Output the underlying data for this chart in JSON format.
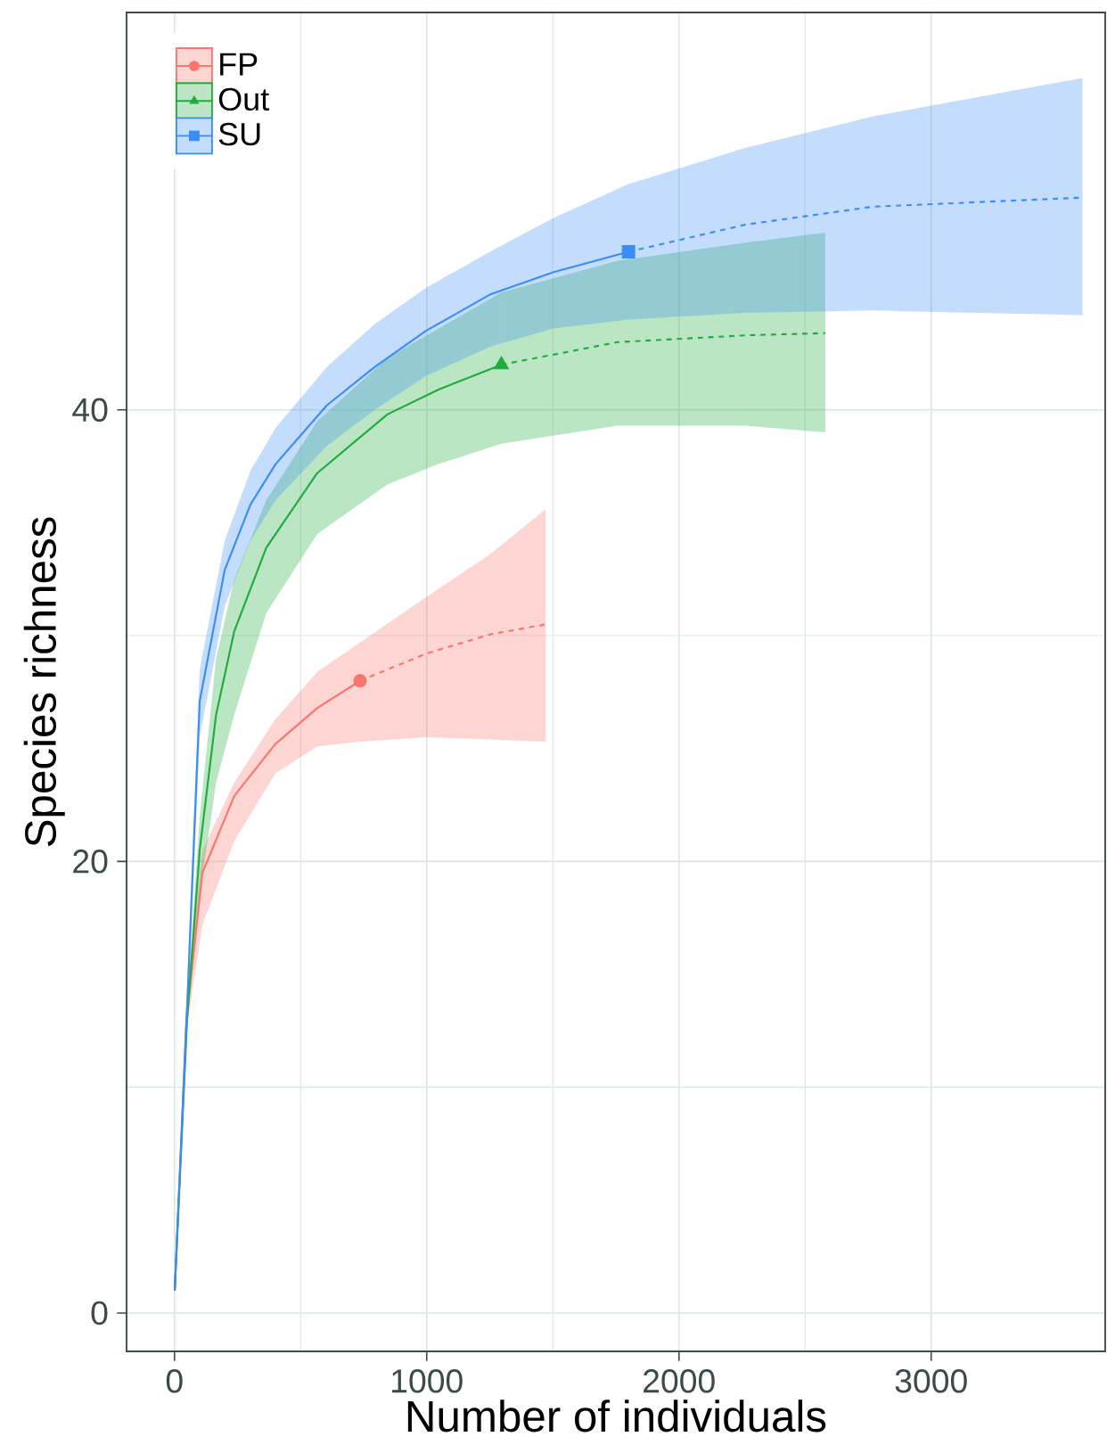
{
  "chart_data": {
    "type": "line",
    "xlabel": "Number of individuals",
    "ylabel": "Species richness",
    "xlim": [
      -190,
      3690
    ],
    "ylim": [
      -1.7,
      57.6
    ],
    "xticks": [
      0,
      1000,
      2000,
      3000
    ],
    "yticks": [
      0,
      20,
      40
    ],
    "grid": true,
    "legend": "top left",
    "series": [
      {
        "color": "#f8766d",
        "line_style": "solid",
        "x": [
          1,
          47,
          111,
          237,
          400,
          567,
          736
        ],
        "values": [
          1,
          13,
          19.5,
          22.9,
          25.2,
          26.8,
          28.0
        ],
        "lower": [
          1,
          12.5,
          17.2,
          20.9,
          23.9,
          25.1,
          25.3
        ],
        "upper": [
          1,
          14,
          20.5,
          23.5,
          26.3,
          28.4,
          29.7
        ]
      },
      {
        "color": "#f8766d",
        "line_style": "dashed",
        "x": [
          736,
          997,
          1250,
          1472
        ],
        "values": [
          28.0,
          29.2,
          30.05,
          30.5
        ],
        "lower": [
          25.3,
          25.5,
          25.4,
          25.3
        ],
        "upper": [
          29.7,
          31.7,
          33.6,
          35.6
        ]
      },
      {
        "type": "scatter",
        "name": "FP",
        "color": "#f8766d",
        "marker": "circle",
        "x": [
          736
        ],
        "values": [
          28.0
        ]
      },
      {
        "color": "#1fab3d",
        "line_style": "solid",
        "x": [
          1,
          50,
          100,
          165,
          237,
          364,
          566,
          844,
          1047,
          1296
        ],
        "values": [
          1,
          13,
          20.5,
          26.5,
          30.2,
          33.9,
          37.2,
          39.8,
          40.9,
          42.0
        ],
        "lower": [
          1,
          12.5,
          18.5,
          23.5,
          26.5,
          31.0,
          34.5,
          36.7,
          37.6,
          38.5
        ],
        "upper": [
          1,
          13.5,
          22,
          29,
          32.5,
          36,
          39.5,
          42.3,
          43.6,
          45.2
        ]
      },
      {
        "color": "#1fab3d",
        "line_style": "dashed",
        "x": [
          1296,
          1757,
          2262,
          2580
        ],
        "values": [
          42.0,
          43.0,
          43.3,
          43.4
        ],
        "lower": [
          38.5,
          39.3,
          39.3,
          39.0
        ],
        "upper": [
          45.2,
          46.6,
          47.4,
          47.85
        ]
      },
      {
        "type": "scatter",
        "name": "Out",
        "color": "#1fab3d",
        "marker": "triangle",
        "x": [
          1296
        ],
        "values": [
          42.0
        ]
      },
      {
        "color": "#3a8df5",
        "line_style": "solid",
        "x": [
          1,
          50,
          100,
          199,
          301,
          401,
          604,
          794,
          997,
          1250,
          1503,
          1800
        ],
        "values": [
          1,
          13.5,
          27.1,
          32.9,
          35.8,
          37.6,
          40.2,
          41.9,
          43.5,
          45.1,
          46.1,
          47.0
        ],
        "lower": [
          1,
          12.5,
          25.5,
          31.3,
          34.2,
          36.0,
          38.4,
          40.0,
          41.5,
          42.8,
          43.6,
          44.0
        ],
        "upper": [
          1,
          14.5,
          28.5,
          34.2,
          37.3,
          39.2,
          41.9,
          43.8,
          45.4,
          47.0,
          48.5,
          50.0
        ]
      },
      {
        "color": "#3a8df5",
        "line_style": "dashed",
        "x": [
          1800,
          2262,
          2770,
          3600
        ],
        "values": [
          47.0,
          48.2,
          49.0,
          49.4
        ],
        "lower": [
          44.0,
          44.3,
          44.4,
          44.2
        ],
        "upper": [
          50.0,
          51.6,
          53.0,
          54.7
        ]
      },
      {
        "type": "scatter",
        "name": "SU",
        "color": "#3a8df5",
        "marker": "square",
        "x": [
          1800
        ],
        "values": [
          47.0
        ]
      }
    ]
  }
}
